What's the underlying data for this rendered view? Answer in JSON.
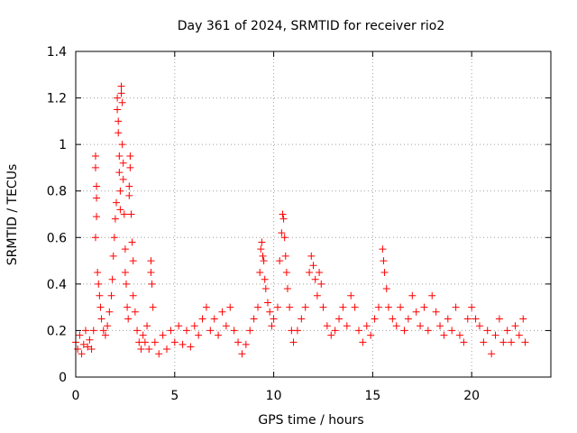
{
  "chart_data": {
    "type": "scatter",
    "title": "Day 361 of 2024, SRMTID for receiver rio2",
    "xlabel": "GPS time / hours",
    "ylabel": "SRMTID / TECUs",
    "xlim": [
      0,
      24
    ],
    "ylim": [
      0,
      1.4
    ],
    "xticks": [
      0,
      5,
      10,
      15,
      20
    ],
    "xtick_labels": [
      "0",
      "5",
      "10",
      "15",
      "20"
    ],
    "yticks": [
      0,
      0.2,
      0.4,
      0.6,
      0.8,
      1.0,
      1.2,
      1.4
    ],
    "ytick_labels": [
      "0",
      "0.2",
      "0.4",
      "0.6",
      "0.8",
      "1",
      "1.2",
      "1.4"
    ],
    "grid": true,
    "marker": "+",
    "colors": {
      "marker": "#ff0000",
      "grid": "#a0a0a0",
      "axis": "#000000"
    },
    "series": [
      {
        "name": "SRMTID",
        "points": [
          [
            0.0,
            0.15
          ],
          [
            0.1,
            0.12
          ],
          [
            0.2,
            0.18
          ],
          [
            0.3,
            0.1
          ],
          [
            0.4,
            0.14
          ],
          [
            0.5,
            0.2
          ],
          [
            0.6,
            0.13
          ],
          [
            0.7,
            0.16
          ],
          [
            0.8,
            0.12
          ],
          [
            0.9,
            0.2
          ],
          [
            1.0,
            0.95
          ],
          [
            1.0,
            0.9
          ],
          [
            1.05,
            0.82
          ],
          [
            1.05,
            0.77
          ],
          [
            1.05,
            0.69
          ],
          [
            1.0,
            0.6
          ],
          [
            1.1,
            0.45
          ],
          [
            1.15,
            0.4
          ],
          [
            1.2,
            0.35
          ],
          [
            1.25,
            0.3
          ],
          [
            1.3,
            0.25
          ],
          [
            1.4,
            0.2
          ],
          [
            1.5,
            0.18
          ],
          [
            1.6,
            0.22
          ],
          [
            1.7,
            0.28
          ],
          [
            1.8,
            0.35
          ],
          [
            1.85,
            0.42
          ],
          [
            1.9,
            0.52
          ],
          [
            1.95,
            0.6
          ],
          [
            2.0,
            0.68
          ],
          [
            2.05,
            0.75
          ],
          [
            2.1,
            1.2
          ],
          [
            2.1,
            1.15
          ],
          [
            2.15,
            1.1
          ],
          [
            2.15,
            1.05
          ],
          [
            2.2,
            0.95
          ],
          [
            2.2,
            0.88
          ],
          [
            2.25,
            0.8
          ],
          [
            2.25,
            0.72
          ],
          [
            2.3,
            1.25
          ],
          [
            2.3,
            1.22
          ],
          [
            2.35,
            1.18
          ],
          [
            2.35,
            1.0
          ],
          [
            2.4,
            0.92
          ],
          [
            2.4,
            0.85
          ],
          [
            2.45,
            0.7
          ],
          [
            2.5,
            0.55
          ],
          [
            2.5,
            0.45
          ],
          [
            2.55,
            0.4
          ],
          [
            2.6,
            0.3
          ],
          [
            2.65,
            0.25
          ],
          [
            2.7,
            0.82
          ],
          [
            2.7,
            0.78
          ],
          [
            2.75,
            0.9
          ],
          [
            2.75,
            0.95
          ],
          [
            2.8,
            0.7
          ],
          [
            2.85,
            0.58
          ],
          [
            2.9,
            0.5
          ],
          [
            2.9,
            0.35
          ],
          [
            3.0,
            0.28
          ],
          [
            3.1,
            0.2
          ],
          [
            3.2,
            0.15
          ],
          [
            3.3,
            0.12
          ],
          [
            3.4,
            0.18
          ],
          [
            3.5,
            0.15
          ],
          [
            3.6,
            0.22
          ],
          [
            3.7,
            0.12
          ],
          [
            3.8,
            0.5
          ],
          [
            3.8,
            0.45
          ],
          [
            3.85,
            0.4
          ],
          [
            3.9,
            0.3
          ],
          [
            4.0,
            0.15
          ],
          [
            4.2,
            0.1
          ],
          [
            4.4,
            0.18
          ],
          [
            4.6,
            0.12
          ],
          [
            4.8,
            0.2
          ],
          [
            5.0,
            0.15
          ],
          [
            5.2,
            0.22
          ],
          [
            5.4,
            0.14
          ],
          [
            5.6,
            0.2
          ],
          [
            5.8,
            0.13
          ],
          [
            6.0,
            0.22
          ],
          [
            6.2,
            0.18
          ],
          [
            6.4,
            0.25
          ],
          [
            6.6,
            0.3
          ],
          [
            6.8,
            0.2
          ],
          [
            7.0,
            0.25
          ],
          [
            7.2,
            0.18
          ],
          [
            7.4,
            0.28
          ],
          [
            7.6,
            0.22
          ],
          [
            7.8,
            0.3
          ],
          [
            8.0,
            0.2
          ],
          [
            8.2,
            0.15
          ],
          [
            8.4,
            0.1
          ],
          [
            8.6,
            0.14
          ],
          [
            8.8,
            0.2
          ],
          [
            9.0,
            0.25
          ],
          [
            9.2,
            0.3
          ],
          [
            9.3,
            0.45
          ],
          [
            9.35,
            0.55
          ],
          [
            9.4,
            0.58
          ],
          [
            9.45,
            0.52
          ],
          [
            9.5,
            0.5
          ],
          [
            9.55,
            0.42
          ],
          [
            9.6,
            0.38
          ],
          [
            9.7,
            0.32
          ],
          [
            9.8,
            0.28
          ],
          [
            9.9,
            0.22
          ],
          [
            10.0,
            0.25
          ],
          [
            10.2,
            0.3
          ],
          [
            10.3,
            0.5
          ],
          [
            10.4,
            0.62
          ],
          [
            10.45,
            0.7
          ],
          [
            10.5,
            0.68
          ],
          [
            10.55,
            0.6
          ],
          [
            10.6,
            0.52
          ],
          [
            10.65,
            0.45
          ],
          [
            10.7,
            0.38
          ],
          [
            10.8,
            0.3
          ],
          [
            10.9,
            0.2
          ],
          [
            11.0,
            0.15
          ],
          [
            11.2,
            0.2
          ],
          [
            11.4,
            0.25
          ],
          [
            11.6,
            0.3
          ],
          [
            11.8,
            0.45
          ],
          [
            11.9,
            0.52
          ],
          [
            12.0,
            0.48
          ],
          [
            12.1,
            0.42
          ],
          [
            12.2,
            0.35
          ],
          [
            12.3,
            0.45
          ],
          [
            12.4,
            0.4
          ],
          [
            12.5,
            0.3
          ],
          [
            12.7,
            0.22
          ],
          [
            12.9,
            0.18
          ],
          [
            13.1,
            0.2
          ],
          [
            13.3,
            0.25
          ],
          [
            13.5,
            0.3
          ],
          [
            13.7,
            0.22
          ],
          [
            13.9,
            0.35
          ],
          [
            14.1,
            0.3
          ],
          [
            14.3,
            0.2
          ],
          [
            14.5,
            0.15
          ],
          [
            14.7,
            0.22
          ],
          [
            14.9,
            0.18
          ],
          [
            15.1,
            0.25
          ],
          [
            15.3,
            0.3
          ],
          [
            15.5,
            0.55
          ],
          [
            15.55,
            0.5
          ],
          [
            15.6,
            0.45
          ],
          [
            15.7,
            0.38
          ],
          [
            15.8,
            0.3
          ],
          [
            16.0,
            0.25
          ],
          [
            16.2,
            0.22
          ],
          [
            16.4,
            0.3
          ],
          [
            16.6,
            0.2
          ],
          [
            16.8,
            0.25
          ],
          [
            17.0,
            0.35
          ],
          [
            17.2,
            0.28
          ],
          [
            17.4,
            0.22
          ],
          [
            17.6,
            0.3
          ],
          [
            17.8,
            0.2
          ],
          [
            18.0,
            0.35
          ],
          [
            18.2,
            0.28
          ],
          [
            18.4,
            0.22
          ],
          [
            18.6,
            0.18
          ],
          [
            18.8,
            0.25
          ],
          [
            19.0,
            0.2
          ],
          [
            19.2,
            0.3
          ],
          [
            19.4,
            0.18
          ],
          [
            19.6,
            0.15
          ],
          [
            19.8,
            0.25
          ],
          [
            20.0,
            0.3
          ],
          [
            20.2,
            0.25
          ],
          [
            20.4,
            0.22
          ],
          [
            20.6,
            0.15
          ],
          [
            20.8,
            0.2
          ],
          [
            21.0,
            0.1
          ],
          [
            21.2,
            0.18
          ],
          [
            21.4,
            0.25
          ],
          [
            21.6,
            0.15
          ],
          [
            21.8,
            0.2
          ],
          [
            22.0,
            0.15
          ],
          [
            22.2,
            0.22
          ],
          [
            22.4,
            0.18
          ],
          [
            22.6,
            0.25
          ],
          [
            22.7,
            0.15
          ]
        ]
      }
    ]
  }
}
